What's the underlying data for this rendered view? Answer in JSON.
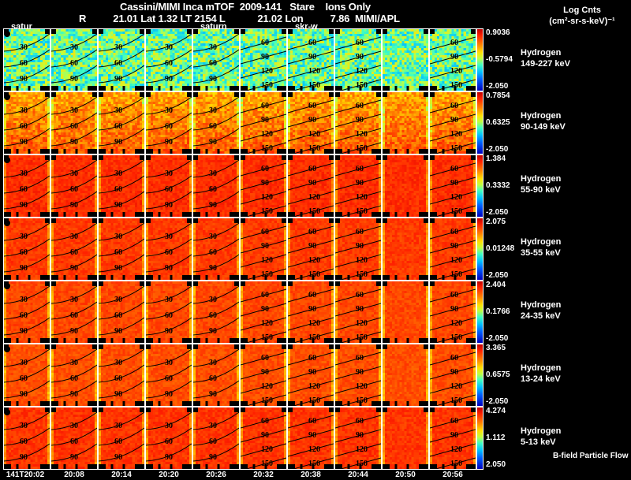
{
  "header": {
    "title": "Cassini/MIMI Inca mTOF  2009-141   Stare    Ions Only",
    "subtitle": "R          21.01 Lat 1.32 LT 2154 L            21.02 Lon          7.86  MIMI/APL",
    "units_line1": "Log Cnts",
    "units_line2": "(cm²-sr-s-keV)⁻¹"
  },
  "position_markers": [
    {
      "label": "satur",
      "column": 1
    },
    {
      "label": "saturn",
      "column": 5
    },
    {
      "label": "skr-w",
      "column": 7
    }
  ],
  "footer_note": "B-field Particle Flow",
  "chart_data": {
    "type": "heatmap",
    "title": "Cassini/MIMI Inca mTOF 2009-141 Stare Ions Only",
    "instrument": "MIMI/APL",
    "ephemeris": {
      "R": 21.01,
      "Lat": 1.32,
      "LT": "2154",
      "L": 21.02,
      "Lon": 7.86
    },
    "colorbar_label": "Log Cnts (cm²-sr-s-keV)⁻¹",
    "time_labels": [
      "141T20:02",
      "20:08",
      "20:14",
      "20:20",
      "20:26",
      "20:32",
      "20:38",
      "20:44",
      "20:50",
      "20:56"
    ],
    "rows": [
      {
        "species": "Hydrogen",
        "energy": "149-227 keV",
        "cmax": "0.9036",
        "cmid": "-0.5794",
        "cmin": "-2.050",
        "level": 0.55
      },
      {
        "species": "Hydrogen",
        "energy": "90-149 keV",
        "cmax": "0.7854",
        "cmid": "0.6325",
        "cmin": "-2.050",
        "level": 0.3
      },
      {
        "species": "Hydrogen",
        "energy": "55-90 keV",
        "cmax": "1.384",
        "cmid": "0.3332",
        "cmin": "-2.050",
        "level": 0.12
      },
      {
        "species": "Hydrogen",
        "energy": "35-55 keV",
        "cmax": "2.075",
        "cmid": "0.01248",
        "cmin": "-2.050",
        "level": 0.14
      },
      {
        "species": "Hydrogen",
        "energy": "24-35 keV",
        "cmax": "2.404",
        "cmid": "0.1766",
        "cmin": "-2.050",
        "level": 0.16
      },
      {
        "species": "Hydrogen",
        "energy": "13-24 keV",
        "cmax": "3.365",
        "cmid": "0.6575",
        "cmin": "-2.050",
        "level": 0.17
      },
      {
        "species": "Hydrogen",
        "energy": "5-13 keV",
        "cmax": "4.274",
        "cmid": "1.112",
        "cmin": "2.050",
        "level": 0.13
      }
    ],
    "contour_sets": {
      "A": [
        "30",
        "60",
        "90"
      ],
      "B": [
        "60",
        "90",
        "120",
        "150"
      ]
    },
    "column_contour_type": [
      "A",
      "A",
      "A",
      "A",
      "A",
      "B",
      "B",
      "B",
      "none",
      "B"
    ]
  }
}
